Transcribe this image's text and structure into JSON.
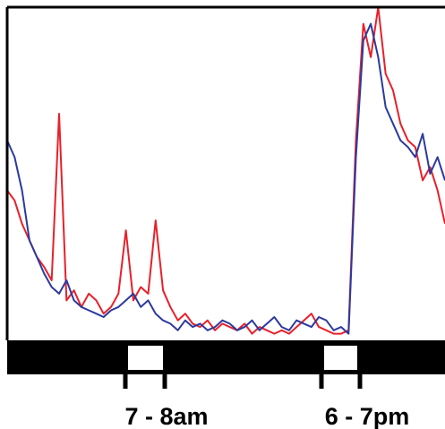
{
  "chart_data": {
    "type": "line",
    "annotations": [
      "7 - 8am",
      "6 - 7pm"
    ],
    "ylim": [
      0,
      100
    ],
    "series": [
      {
        "name": null,
        "color": "#e8202a",
        "values": [
          45,
          42,
          35,
          30,
          25,
          22,
          18,
          68,
          12,
          15,
          10,
          14,
          12,
          8,
          10,
          14,
          33,
          12,
          16,
          14,
          36,
          15,
          10,
          6,
          8,
          5,
          4,
          6,
          3,
          5,
          4,
          3,
          5,
          2,
          4,
          3,
          2,
          3,
          2,
          4,
          6,
          8,
          4,
          3,
          2,
          2,
          3,
          60,
          95,
          85,
          100,
          80,
          75,
          65,
          60,
          58,
          48,
          52,
          45,
          35
        ]
      },
      {
        "name": null,
        "color": "#2b3a9e",
        "values": [
          60,
          55,
          45,
          30,
          25,
          20,
          16,
          14,
          18,
          12,
          10,
          9,
          8,
          7,
          9,
          10,
          12,
          14,
          10,
          12,
          8,
          6,
          5,
          3,
          6,
          4,
          5,
          3,
          4,
          6,
          5,
          3,
          4,
          6,
          3,
          5,
          7,
          4,
          3,
          6,
          5,
          4,
          7,
          6,
          3,
          4,
          2,
          55,
          90,
          95,
          85,
          70,
          65,
          60,
          58,
          55,
          62,
          50,
          55,
          48
        ]
      }
    ]
  }
}
